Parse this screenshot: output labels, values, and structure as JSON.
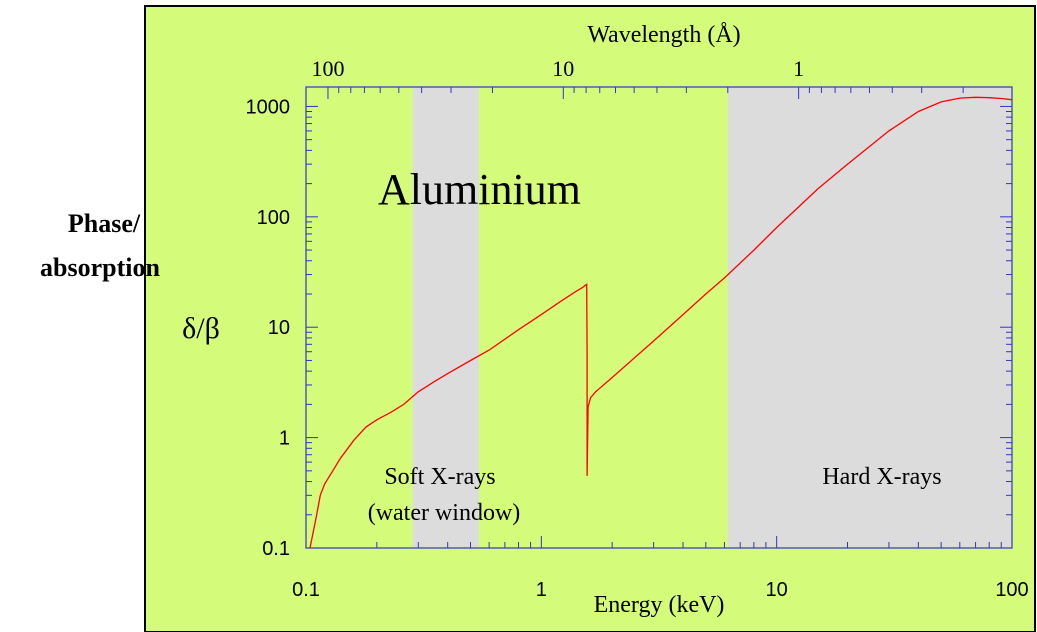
{
  "colors": {
    "background": "#d4fb79",
    "band": "#dcdcdc",
    "axis": "#3333cc",
    "curve": "#ff0000",
    "text": "#000000",
    "frame": "#000000"
  },
  "chart_data": {
    "type": "line",
    "title": "Aluminium",
    "xlabel": "Energy (keV)",
    "x2label": "Wavelength (Å)",
    "ylabel_line1": "Phase/",
    "ylabel_line2": "absorption",
    "ysymbol": "δ/β",
    "xscale": "log",
    "yscale": "log",
    "xlim": [
      0.1,
      100
    ],
    "ylim": [
      0.1,
      1500
    ],
    "x_ticks": [
      {
        "value": 0.1,
        "label": "0.1"
      },
      {
        "value": 1,
        "label": "1"
      },
      {
        "value": 10,
        "label": "10"
      },
      {
        "value": 100,
        "label": "100"
      }
    ],
    "y_ticks": [
      {
        "value": 0.1,
        "label": "0.1"
      },
      {
        "value": 1,
        "label": "1"
      },
      {
        "value": 10,
        "label": "10"
      },
      {
        "value": 100,
        "label": "100"
      },
      {
        "value": 1000,
        "label": "1000"
      }
    ],
    "x2_ticks": [
      {
        "value": 100,
        "label": "100"
      },
      {
        "value": 10,
        "label": "10"
      },
      {
        "value": 1,
        "label": "1"
      }
    ],
    "regions": [
      {
        "from": 0.284,
        "to": 0.543,
        "label_line1": "Soft X-rays",
        "label_line2": "(water window)"
      },
      {
        "from": 6.2,
        "to": 100,
        "label_line1": "Hard X-rays",
        "label_line2": ""
      }
    ],
    "series": [
      {
        "x": [
          0.104,
          0.11,
          0.115,
          0.12,
          0.13,
          0.14,
          0.16,
          0.18,
          0.2,
          0.23,
          0.26,
          0.3,
          0.35,
          0.4,
          0.5,
          0.6,
          0.8,
          1.0,
          1.2,
          1.4,
          1.5,
          1.555,
          1.558,
          1.565,
          1.565,
          1.58,
          1.62,
          1.7,
          2.0,
          3.0,
          4.0,
          5.0,
          6.0,
          8.0,
          10,
          15,
          20,
          30,
          40,
          50,
          60,
          70,
          80,
          90,
          100
        ],
        "y": [
          0.1,
          0.18,
          0.3,
          0.38,
          0.5,
          0.65,
          0.95,
          1.25,
          1.45,
          1.7,
          2.0,
          2.6,
          3.2,
          3.8,
          5.0,
          6.2,
          9.5,
          13,
          17,
          21,
          23,
          24.5,
          24.5,
          6,
          0.45,
          1.9,
          2.3,
          2.6,
          3.5,
          7.5,
          13,
          20,
          28,
          50,
          80,
          180,
          300,
          600,
          900,
          1100,
          1190,
          1210,
          1200,
          1180,
          1150
        ]
      }
    ]
  }
}
